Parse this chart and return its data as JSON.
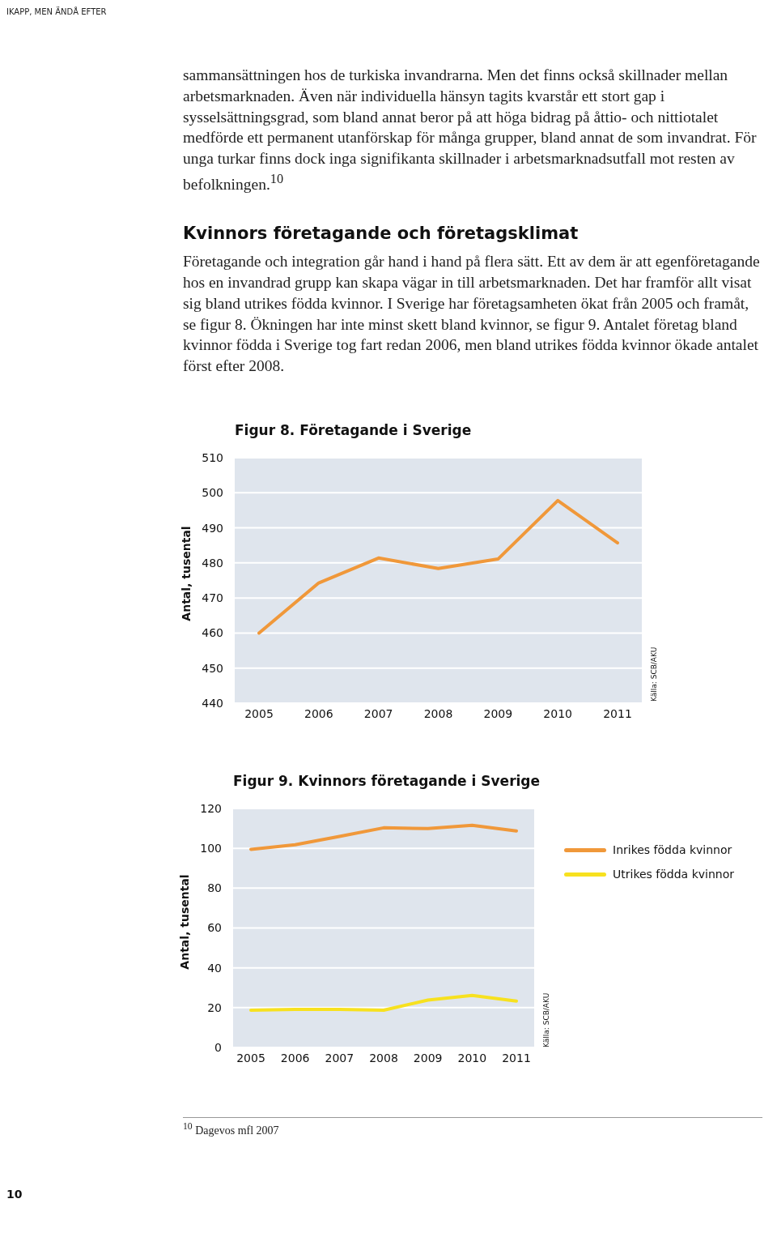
{
  "chart_data": [
    {
      "type": "line",
      "title": "Figur 8. Företagande i Sverige",
      "ylabel": "Antal, tusental",
      "categories": [
        "2005",
        "2006",
        "2007",
        "2008",
        "2009",
        "2010",
        "2011"
      ],
      "values": [
        460,
        474.3,
        481.4,
        478.4,
        481.1,
        497.8,
        485.7
      ],
      "color": "#f0983a",
      "ylim": [
        440,
        510
      ],
      "yticks": [
        440,
        450,
        460,
        470,
        480,
        490,
        500,
        510
      ],
      "grid": "y",
      "annotations": [
        "IKAPP, MEN ÄNDÅ EFTER",
        "sammansättningen hos de turkiska invandrarna. Men det finns också skillnader mellan arbetsmarknaden. Även när individuella hänsyn tagits kvarstår ett stort gap i sysselsättningsgrad, som bland annat beror på att höga bidrag på åttio- och nittiotalet medförde ett permanent utanförskap för många grupper, bland annat de som invandrat. För unga turkar finns dock inga signifikanta skillnader i arbetsmarknadsutfall mot resten av befolkningen.$^{10}$",
        "Kvinnors företagande och företagsklimat",
        "Företagande och integration går hand i hand på flera sätt. Ett av dem är att egenföretagande hos en invandrad grupp kan skapa vägar in till arbetsmarknaden. Det har framför allt visat sig bland utrikes födda kvinnor. I Sverige har företagsamheten ökat från 2005 och framåt, se figur 8. Ökningen har inte minst skett bland kvinnor, se figur 9. Antalet företag bland kvinnor födda i Sverige tog fart redan 2006, men bland utrikes födda kvinnor ökade antalet först efter 2008.",
        "Källa: SCB/AKU"
      ]
    },
    {
      "type": "line",
      "title": "Figur 9. Kvinnors företagande i Sverige",
      "ylabel": "Antal, tusental",
      "categories": [
        "2005",
        "2006",
        "2007",
        "2008",
        "2009",
        "2010",
        "2011"
      ],
      "series": [
        {
          "name": "Inrikes födda kvinnor",
          "color": "#f0983a",
          "values": [
            99.5,
            101.8,
            106,
            110.3,
            109.9,
            111.6,
            108.7
          ]
        },
        {
          "name": "Utrikes födda kvinnor",
          "color": "#f7e11f",
          "values": [
            18.7,
            19.1,
            19.1,
            18.7,
            23.8,
            26.1,
            23.3
          ]
        }
      ],
      "ylim": [
        0,
        120
      ],
      "yticks": [
        0,
        20,
        40,
        60,
        80,
        100,
        120
      ],
      "grid": "y",
      "legend": "right",
      "annotations": [
        "Källa: SCB/AKU",
        "$^{10}$ Dagevos mfl 2007",
        "10"
      ]
    }
  ]
}
